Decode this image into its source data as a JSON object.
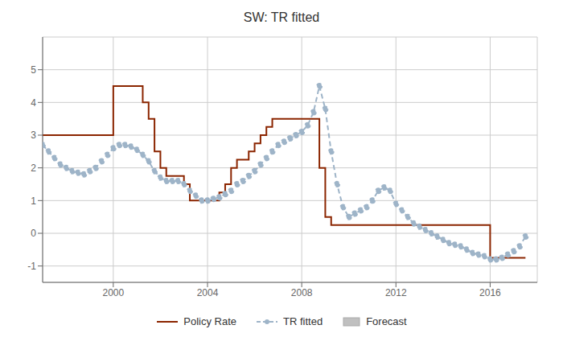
{
  "chart_data": {
    "type": "line",
    "title": "SW: TR fitted",
    "x": [
      1997.0,
      1997.25,
      1997.5,
      1997.75,
      1998.0,
      1998.25,
      1998.5,
      1998.75,
      1999.0,
      1999.25,
      1999.5,
      1999.75,
      2000.0,
      2000.25,
      2000.5,
      2000.75,
      2001.0,
      2001.25,
      2001.5,
      2001.75,
      2002.0,
      2002.25,
      2002.5,
      2002.75,
      2003.0,
      2003.25,
      2003.5,
      2003.75,
      2004.0,
      2004.25,
      2004.5,
      2004.75,
      2005.0,
      2005.25,
      2005.5,
      2005.75,
      2006.0,
      2006.25,
      2006.5,
      2006.75,
      2007.0,
      2007.25,
      2007.5,
      2007.75,
      2008.0,
      2008.25,
      2008.5,
      2008.75,
      2009.0,
      2009.25,
      2009.5,
      2009.75,
      2010.0,
      2010.25,
      2010.5,
      2010.75,
      2011.0,
      2011.25,
      2011.5,
      2011.75,
      2012.0,
      2012.25,
      2012.5,
      2012.75,
      2013.0,
      2013.25,
      2013.5,
      2013.75,
      2014.0,
      2014.25,
      2014.5,
      2014.75,
      2015.0,
      2015.25,
      2015.5,
      2015.75,
      2016.0,
      2016.25,
      2016.5,
      2016.75,
      2017.0,
      2017.25,
      2017.5
    ],
    "series": [
      {
        "name": "Policy Rate",
        "type": "step",
        "color": "#8B2500",
        "line_style": "solid",
        "values": [
          3.0,
          3.0,
          3.0,
          3.0,
          3.0,
          3.0,
          3.0,
          3.0,
          3.0,
          3.0,
          3.0,
          3.0,
          4.5,
          4.5,
          4.5,
          4.5,
          4.5,
          4.0,
          3.5,
          2.5,
          2.0,
          1.75,
          1.75,
          1.75,
          1.5,
          1.0,
          1.0,
          1.0,
          1.0,
          1.0,
          1.25,
          1.5,
          2.0,
          2.25,
          2.25,
          2.5,
          2.75,
          3.0,
          3.25,
          3.5,
          3.5,
          3.5,
          3.5,
          3.5,
          3.5,
          3.5,
          3.5,
          2.0,
          0.5,
          0.25,
          0.25,
          0.25,
          0.25,
          0.25,
          0.25,
          0.25,
          0.25,
          0.25,
          0.25,
          0.25,
          0.25,
          0.25,
          0.25,
          0.25,
          0.25,
          0.25,
          0.25,
          0.25,
          0.25,
          0.25,
          0.25,
          0.25,
          0.25,
          0.25,
          0.25,
          0.25,
          -0.75,
          -0.75,
          -0.75,
          -0.75,
          -0.75,
          -0.75,
          -0.75
        ]
      },
      {
        "name": "TR fitted",
        "type": "line",
        "color": "#9EB4C8",
        "line_style": "dashed",
        "marker": "circle",
        "values": [
          2.7,
          2.5,
          2.3,
          2.1,
          2.0,
          1.9,
          1.85,
          1.8,
          1.9,
          2.0,
          2.2,
          2.4,
          2.6,
          2.7,
          2.7,
          2.65,
          2.55,
          2.4,
          2.2,
          1.9,
          1.7,
          1.6,
          1.6,
          1.6,
          1.5,
          1.3,
          1.15,
          1.0,
          1.0,
          1.05,
          1.1,
          1.2,
          1.3,
          1.5,
          1.6,
          1.75,
          1.9,
          2.1,
          2.3,
          2.5,
          2.7,
          2.8,
          2.9,
          3.0,
          3.1,
          3.3,
          3.7,
          4.5,
          3.8,
          2.5,
          1.5,
          0.8,
          0.5,
          0.6,
          0.7,
          0.8,
          1.0,
          1.3,
          1.4,
          1.3,
          0.9,
          0.7,
          0.5,
          0.3,
          0.2,
          0.1,
          0.0,
          -0.1,
          -0.2,
          -0.3,
          -0.35,
          -0.4,
          -0.5,
          -0.6,
          -0.65,
          -0.7,
          -0.8,
          -0.8,
          -0.75,
          -0.65,
          -0.55,
          -0.4,
          -0.1
        ]
      },
      {
        "name": "Forecast",
        "type": "area",
        "color": "#C0C0C0",
        "values": [
          null,
          null,
          null,
          null,
          null,
          null,
          null,
          null,
          null,
          null,
          null,
          null,
          null,
          null,
          null,
          null,
          null,
          null,
          null,
          null,
          null,
          null,
          null,
          null,
          null,
          null,
          null,
          null,
          null,
          null,
          null,
          null,
          null,
          null,
          null,
          null,
          null,
          null,
          null,
          null,
          null,
          null,
          null,
          null,
          null,
          null,
          null,
          null,
          null,
          null,
          null,
          null,
          null,
          null,
          null,
          null,
          null,
          null,
          null,
          null,
          null,
          null,
          null,
          null,
          null,
          null,
          null,
          null,
          null,
          null,
          null,
          null,
          null,
          null,
          null,
          null,
          null,
          null,
          null,
          null,
          null,
          null,
          null
        ]
      }
    ],
    "xlim": [
      1997.0,
      2018.0
    ],
    "ylim": [
      -1.5,
      6.0
    ],
    "xticks": [
      2000,
      2004,
      2008,
      2012,
      2016
    ],
    "yticks": [
      -1,
      0,
      1,
      2,
      3,
      4,
      5
    ],
    "grid": true,
    "legend": "bottom"
  }
}
